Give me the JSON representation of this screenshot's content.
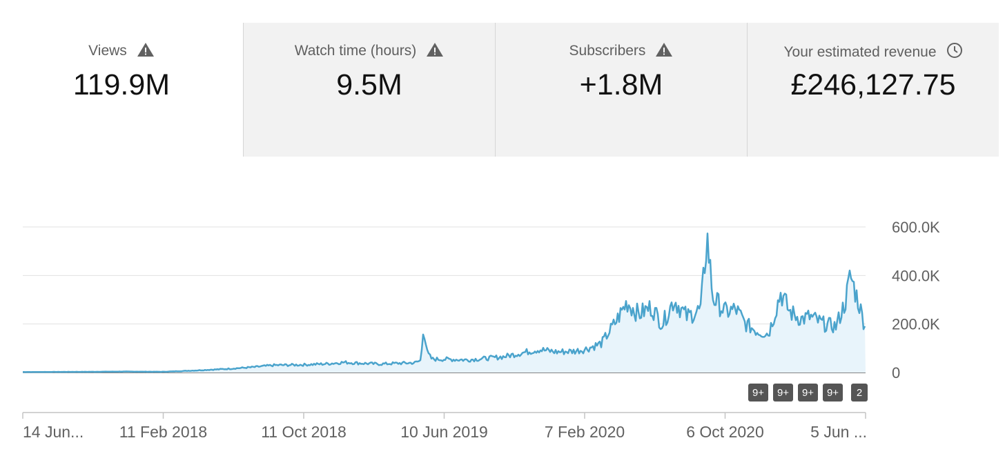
{
  "metrics": [
    {
      "label": "Views",
      "value": "119.9M",
      "icon": "warning-icon"
    },
    {
      "label": "Watch time (hours)",
      "value": "9.5M",
      "icon": "warning-icon"
    },
    {
      "label": "Subscribers",
      "value": "+1.8M",
      "icon": "warning-icon"
    },
    {
      "label": "Your estimated revenue",
      "value": "£246,127.75",
      "icon": "clock-icon"
    }
  ],
  "colors": {
    "line": "#4aa3cc",
    "area": "#e8f4fb",
    "grid": "#e0e0e0",
    "badge": "#555555"
  },
  "chart_data": {
    "type": "area",
    "grid": true,
    "y_axis_position": "right",
    "ylim": [
      0,
      600000
    ],
    "ytick_labels": [
      "600.0K",
      "400.0K",
      "200.0K",
      "0"
    ],
    "xtick_labels": [
      "14 Jun...",
      "11 Feb 2018",
      "11 Oct 2018",
      "10 Jun 2019",
      "7 Feb 2020",
      "6 Oct 2020",
      "5 Jun ..."
    ],
    "x_start": "2017-06-14",
    "x_end": "2021-06-05",
    "series": [
      {
        "values": [
          [
            "2017-06-14",
            2000
          ],
          [
            "2017-10-15",
            3000
          ],
          [
            "2017-12-01",
            4000
          ],
          [
            "2018-02-11",
            3000
          ],
          [
            "2018-03-15",
            6000
          ],
          [
            "2018-04-20",
            10000
          ],
          [
            "2018-06-01",
            15000
          ],
          [
            "2018-07-15",
            22000
          ],
          [
            "2018-08-20",
            30000
          ],
          [
            "2018-10-11",
            32000
          ],
          [
            "2018-11-20",
            36000
          ],
          [
            "2018-12-20",
            42000
          ],
          [
            "2019-01-20",
            38000
          ],
          [
            "2019-02-20",
            35000
          ],
          [
            "2019-03-20",
            38000
          ],
          [
            "2019-04-20",
            40000
          ],
          [
            "2019-05-01",
            50000
          ],
          [
            "2019-05-05",
            190000
          ],
          [
            "2019-05-12",
            80000
          ],
          [
            "2019-05-20",
            55000
          ],
          [
            "2019-06-10",
            55000
          ],
          [
            "2019-07-20",
            52000
          ],
          [
            "2019-08-20",
            58000
          ],
          [
            "2019-09-20",
            65000
          ],
          [
            "2019-10-20",
            80000
          ],
          [
            "2019-11-20",
            95000
          ],
          [
            "2019-12-20",
            85000
          ],
          [
            "2020-01-20",
            88000
          ],
          [
            "2020-02-07",
            95000
          ],
          [
            "2020-03-07",
            120000
          ],
          [
            "2020-04-01",
            210000
          ],
          [
            "2020-04-20",
            290000
          ],
          [
            "2020-05-10",
            240000
          ],
          [
            "2020-06-01",
            270000
          ],
          [
            "2020-06-20",
            200000
          ],
          [
            "2020-07-10",
            300000
          ],
          [
            "2020-08-01",
            230000
          ],
          [
            "2020-08-25",
            260000
          ],
          [
            "2020-09-05",
            560000
          ],
          [
            "2020-09-15",
            310000
          ],
          [
            "2020-10-06",
            250000
          ],
          [
            "2020-10-25",
            260000
          ],
          [
            "2020-11-10",
            200000
          ],
          [
            "2020-12-01",
            170000
          ],
          [
            "2020-12-20",
            160000
          ],
          [
            "2021-01-10",
            330000
          ],
          [
            "2021-01-25",
            250000
          ],
          [
            "2021-02-15",
            220000
          ],
          [
            "2021-03-01",
            230000
          ],
          [
            "2021-03-25",
            200000
          ],
          [
            "2021-04-15",
            190000
          ],
          [
            "2021-05-01",
            290000
          ],
          [
            "2021-05-10",
            400000
          ],
          [
            "2021-05-25",
            280000
          ],
          [
            "2021-06-05",
            180000
          ]
        ]
      }
    ],
    "annotation_badges": [
      "9+",
      "9+",
      "9+",
      "9+",
      "2"
    ]
  }
}
